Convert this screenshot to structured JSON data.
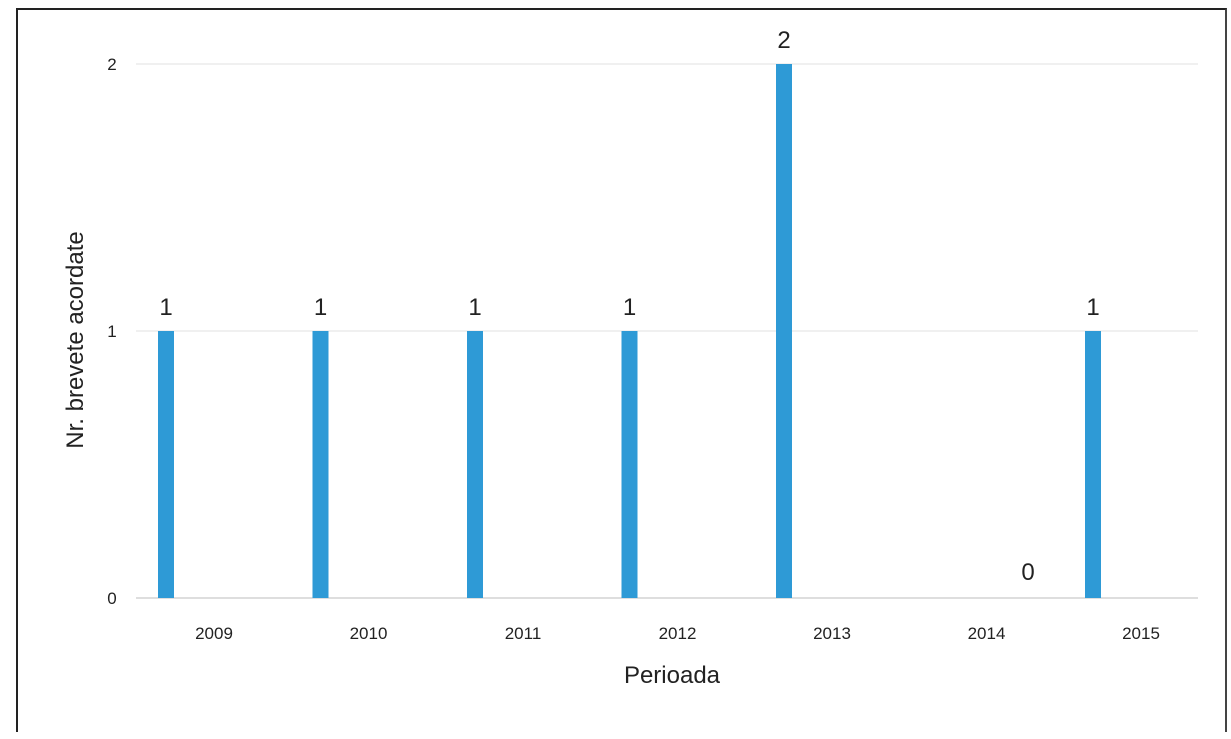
{
  "chart_data": {
    "type": "bar",
    "categories": [
      "2009",
      "2010",
      "2011",
      "2012",
      "2013",
      "2014",
      "2015"
    ],
    "values": [
      1,
      1,
      1,
      1,
      2,
      0,
      1
    ],
    "data_labels": [
      "1",
      "1",
      "1",
      "1",
      "2",
      "0",
      "1"
    ],
    "xlabel": "Perioada",
    "ylabel": "Nr. brevete acordate",
    "ylim": [
      0,
      2
    ],
    "yticks": [
      "0",
      "1",
      "2"
    ],
    "grid": true,
    "legend": "none",
    "bar_color": "#2e9ad6"
  }
}
